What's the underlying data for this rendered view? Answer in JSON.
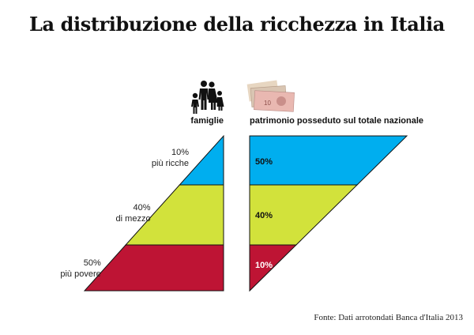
{
  "title": "La distribuzione della ricchezza in Italia",
  "source": "Fonte: Dati arrotondati Banca d'Italia 2013",
  "colors": {
    "blue": "#00aeef",
    "yellow": "#d2e23b",
    "red": "#be1434",
    "outline": "#111111"
  },
  "icons": {
    "left": "family-icon",
    "right": "banknotes-icon"
  },
  "chart_data": [
    {
      "type": "bar",
      "xlabel": "famiglie",
      "categories": [
        "10%\npiù ricche",
        "40%\ndi mezzo",
        "50%\npiù povere"
      ],
      "values": [
        10,
        40,
        50
      ],
      "unit": "%"
    },
    {
      "type": "bar",
      "xlabel": "patrimonio posseduto sul totale nazionale",
      "value_labels": [
        "50%",
        "40%",
        "10%"
      ],
      "values": [
        50,
        40,
        10
      ],
      "unit": "%"
    }
  ]
}
